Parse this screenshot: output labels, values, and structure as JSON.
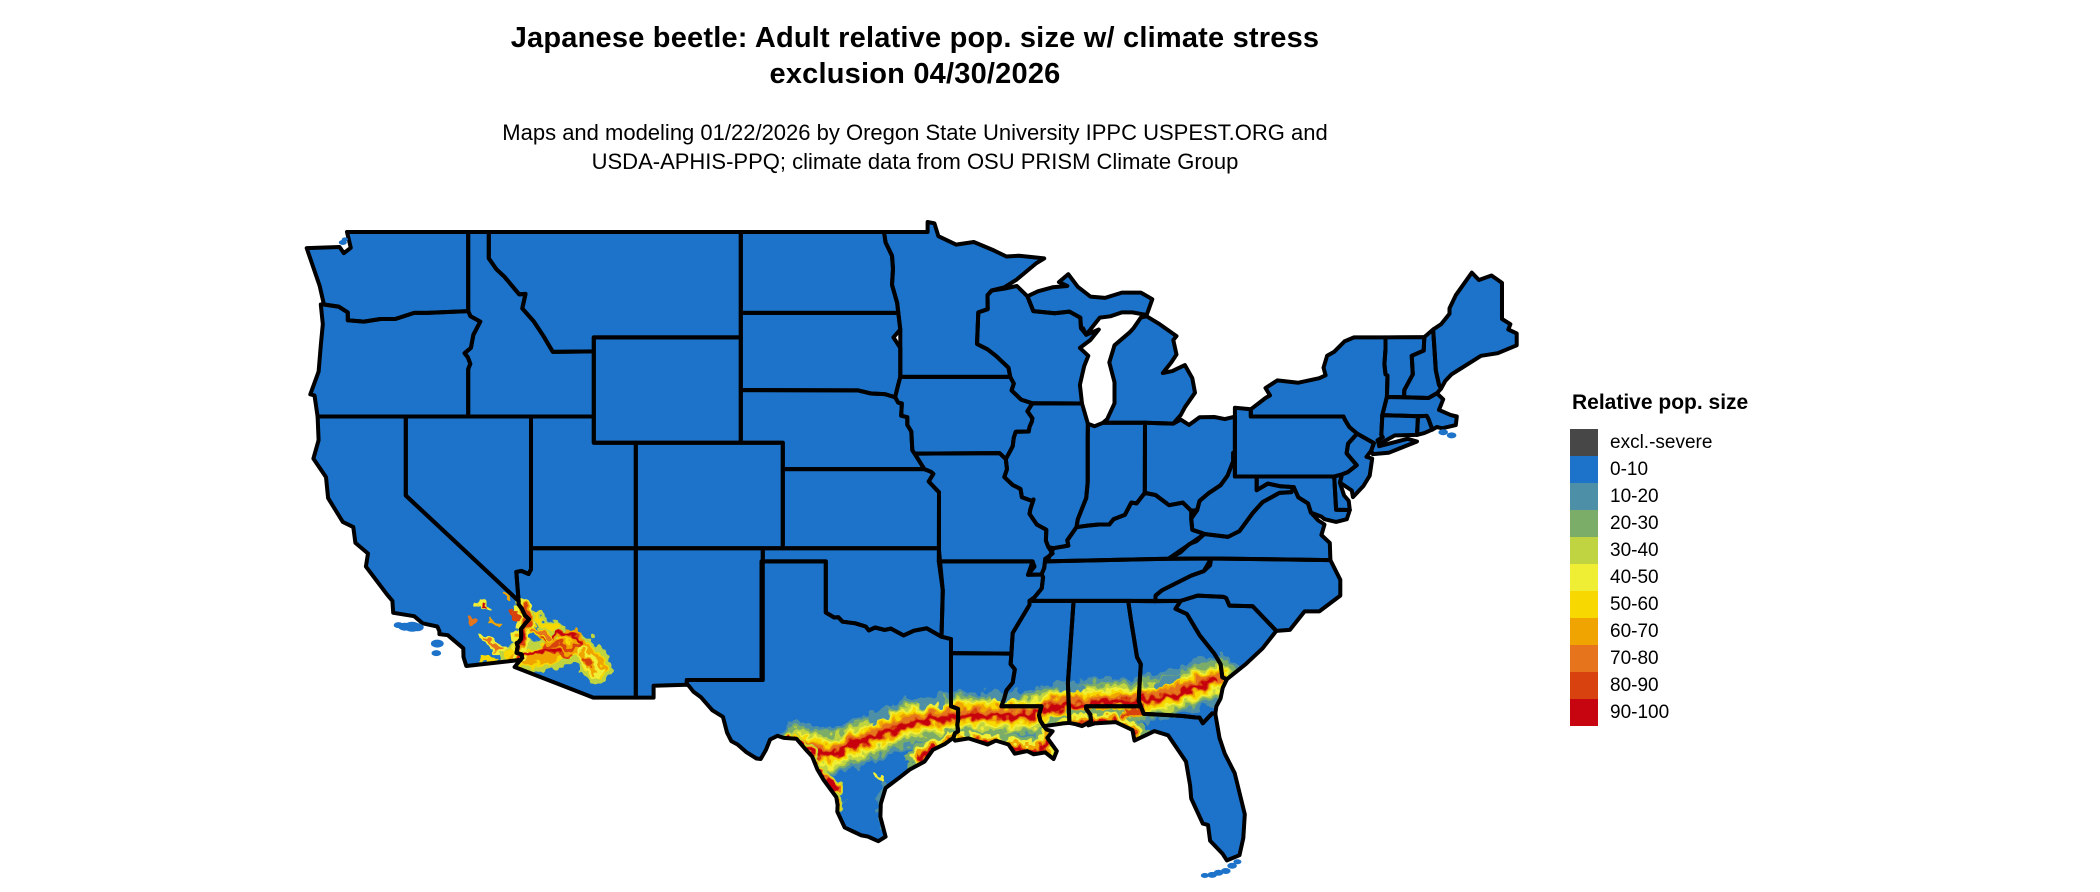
{
  "title": {
    "line1": "Japanese beetle: Adult relative pop. size w/ climate stress",
    "line2": "exclusion 04/30/2026"
  },
  "subtitle": {
    "line1": "Maps and modeling 01/22/2026 by Oregon State University IPPC USPEST.ORG and",
    "line2": "USDA-APHIS-PPQ; climate data from OSU PRISM Climate Group"
  },
  "legend": {
    "title": "Relative pop. size",
    "items": [
      {
        "key": "excl",
        "label": "excl.-severe",
        "color": "#474747"
      },
      {
        "key": "0-10",
        "label": "0-10",
        "color": "#1c73c9"
      },
      {
        "key": "10-20",
        "label": "10-20",
        "color": "#4d8fa6"
      },
      {
        "key": "20-30",
        "label": "20-30",
        "color": "#7cad68"
      },
      {
        "key": "30-40",
        "label": "30-40",
        "color": "#c0d441"
      },
      {
        "key": "40-50",
        "label": "40-50",
        "color": "#f0ee34"
      },
      {
        "key": "50-60",
        "label": "50-60",
        "color": "#f7d800"
      },
      {
        "key": "60-70",
        "label": "60-70",
        "color": "#efa402"
      },
      {
        "key": "70-80",
        "label": "70-80",
        "color": "#e5741d"
      },
      {
        "key": "80-90",
        "label": "80-90",
        "color": "#d8420e"
      },
      {
        "key": "90-100",
        "label": "90-100",
        "color": "#c60510"
      }
    ]
  },
  "map": {
    "region": "Contiguous United States",
    "base_class": "0-10",
    "land_color": "#1c73c9",
    "border_color": "#000000",
    "background_color": "#ffffff",
    "hotspots": [
      "Warm band (10-100) along the Gulf Coast from the Rio Grande and central Texas through Louisiana, southern Mississippi, southern Alabama, the Florida panhandle and southern Georgia, reaching the Atlantic coast near Savannah",
      "Lower Colorado River valley and southwestern/central Arizona (Yuma - Phoenix - Tucson)",
      "Scattered patches in the southeastern California deserts",
      "Thin high-value streak along the Rio Grande in southwest Texas"
    ]
  }
}
